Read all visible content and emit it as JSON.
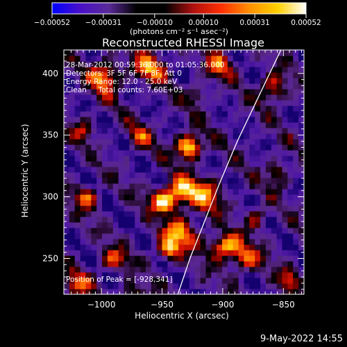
{
  "chart_data": {
    "type": "heatmap",
    "title": "Reconstructed RHESSI Image",
    "xlabel": "Heliocentric X (arcsec)",
    "ylabel": "Heliocentric Y (arcsec)",
    "xlim": [
      -1031,
      -833
    ],
    "ylim": [
      221,
      419
    ],
    "x_ticks": [
      -1000,
      -950,
      -900,
      -850
    ],
    "x_tick_labels": [
      "−1000",
      "−950",
      "−900",
      "−850"
    ],
    "y_ticks": [
      250,
      300,
      350,
      400
    ],
    "y_tick_labels": [
      "250",
      "300",
      "350",
      "400"
    ],
    "colorbar": {
      "vmin": -0.00052,
      "vmax": 0.00052,
      "ticks": [
        -0.00052,
        -0.00031,
        -0.0001,
        0.0001,
        0.00031,
        0.00052
      ],
      "tick_labels": [
        "−0.00052",
        "−0.00031",
        "−0.00010",
        "0.00010",
        "0.00031",
        "0.00052"
      ],
      "unit_label": "(photons cm⁻² s⁻¹ asec⁻²)",
      "stops": [
        "#0000ff",
        "#4a10c8",
        "#5a2a9a",
        "#000000",
        "#000000",
        "#b01010",
        "#ff3000",
        "#ff9000",
        "#ffd000",
        "#ffffff"
      ]
    },
    "annotations": [
      "28-Mar-2012 00:59:36.000 to 01:05:36.000",
      "Detectors: 3F 5F 6F 7F 8F, Att 0",
      "Energy Range: 12.0 - 25.0 keV",
      "Clean     Total counts: 7.60E+03"
    ],
    "peak_label": "Position of Peak = [-928,341]",
    "peak": [
      -928,
      341
    ],
    "limb_curve": [
      [
        -937,
        221
      ],
      [
        -927,
        250
      ],
      [
        -915,
        280
      ],
      [
        -903,
        310
      ],
      [
        -888,
        345
      ],
      [
        -871,
        380
      ],
      [
        -852,
        419
      ]
    ],
    "sources": [
      {
        "x": -928,
        "y": 341,
        "amp": 1.0,
        "sx": 7,
        "sy": 7
      },
      {
        "x": -948,
        "y": 297,
        "amp": 0.88,
        "sx": 8,
        "sy": 7
      },
      {
        "x": -933,
        "y": 306,
        "amp": 0.7,
        "sx": 8,
        "sy": 8
      },
      {
        "x": -914,
        "y": 301,
        "amp": 0.62,
        "sx": 9,
        "sy": 9
      },
      {
        "x": -935,
        "y": 270,
        "amp": 0.72,
        "sx": 10,
        "sy": 9
      },
      {
        "x": -945,
        "y": 257,
        "amp": 0.62,
        "sx": 6,
        "sy": 6
      },
      {
        "x": -898,
        "y": 260,
        "amp": 0.85,
        "sx": 9,
        "sy": 7
      },
      {
        "x": -881,
        "y": 250,
        "amp": 0.6,
        "sx": 8,
        "sy": 7
      },
      {
        "x": -997,
        "y": 397,
        "amp": 0.7,
        "sx": 9,
        "sy": 9
      },
      {
        "x": -960,
        "y": 405,
        "amp": 0.68,
        "sx": 9,
        "sy": 8
      },
      {
        "x": -903,
        "y": 407,
        "amp": 0.55,
        "sx": 8,
        "sy": 7
      },
      {
        "x": -859,
        "y": 388,
        "amp": 0.6,
        "sx": 7,
        "sy": 8
      },
      {
        "x": -1012,
        "y": 300,
        "amp": 0.55,
        "sx": 7,
        "sy": 7
      },
      {
        "x": -990,
        "y": 250,
        "amp": 0.5,
        "sx": 8,
        "sy": 6
      },
      {
        "x": -1020,
        "y": 230,
        "amp": 0.55,
        "sx": 8,
        "sy": 7
      },
      {
        "x": -855,
        "y": 319,
        "amp": 0.45,
        "sx": 6,
        "sy": 7
      },
      {
        "x": -968,
        "y": 349,
        "amp": 0.45,
        "sx": 7,
        "sy": 7
      },
      {
        "x": -872,
        "y": 283,
        "amp": 0.45,
        "sx": 6,
        "sy": 6
      },
      {
        "x": -845,
        "y": 233,
        "amp": 0.5,
        "sx": 6,
        "sy": 6
      },
      {
        "x": -1015,
        "y": 355,
        "amp": 0.4,
        "sx": 6,
        "sy": 6
      },
      {
        "x": -975,
        "y": 223,
        "amp": 0.4,
        "sx": 6,
        "sy": 5
      },
      {
        "x": -920,
        "y": 383,
        "amp": 0.35,
        "sx": 6,
        "sy": 6
      }
    ]
  },
  "footer": {
    "date": "9-May-2022 14:55"
  }
}
